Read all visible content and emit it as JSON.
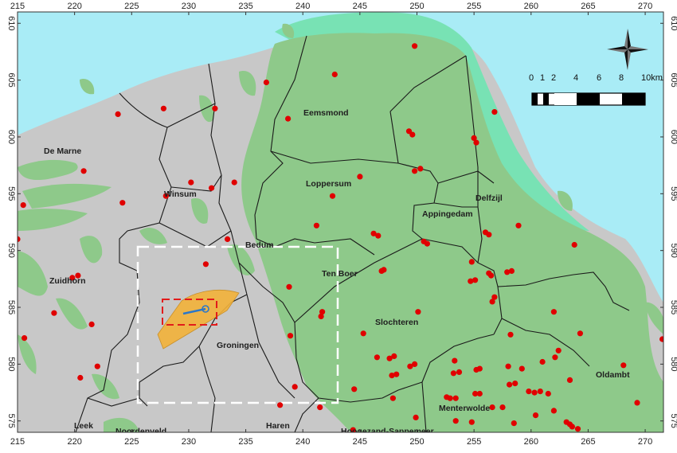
{
  "map": {
    "colors": {
      "sea": "#a9ecf6",
      "land": "#c8c8c8",
      "gas_field": "#8ec98a",
      "offshore_field": "#78e2b4",
      "earthquake": "#e00000",
      "study_area": "#f3b23a",
      "well": "#2b77c9",
      "boundary": "#1a1a1a"
    },
    "x_ticks": [
      "215",
      "220",
      "225",
      "230",
      "235",
      "240",
      "245",
      "250",
      "255",
      "260",
      "265",
      "270"
    ],
    "y_ticks": [
      "610",
      "605",
      "600",
      "595",
      "590",
      "585",
      "580",
      "575"
    ],
    "municipalities": [
      {
        "name": "Eemsmond"
      },
      {
        "name": "De Marne"
      },
      {
        "name": "Loppersum"
      },
      {
        "name": "Delfzijl"
      },
      {
        "name": "Winsum"
      },
      {
        "name": "Appingedam"
      },
      {
        "name": "Bedum"
      },
      {
        "name": "Ten Boer"
      },
      {
        "name": "Zuidhorn"
      },
      {
        "name": "Slochteren"
      },
      {
        "name": "Groningen"
      },
      {
        "name": "Oldambt"
      },
      {
        "name": "Menterwolde"
      },
      {
        "name": "Leek"
      },
      {
        "name": "Noordenveld"
      },
      {
        "name": "Haren"
      },
      {
        "name": "Hoogezand-Sappemeer"
      }
    ],
    "scale_bar": {
      "labels": [
        "0",
        "1",
        "2",
        "4",
        "6",
        "8",
        "10km"
      ]
    },
    "north_arrow": "compass-rose-icon",
    "earthquakes": [
      [
        249.8,
        608
      ],
      [
        242.8,
        605.5
      ],
      [
        236.8,
        604.8
      ],
      [
        238.7,
        601.6
      ],
      [
        223.8,
        602
      ],
      [
        227.8,
        602.5
      ],
      [
        232.3,
        602.5
      ],
      [
        249.3,
        600.5
      ],
      [
        249.6,
        600.2
      ],
      [
        255,
        599.9
      ],
      [
        255.2,
        599.5
      ],
      [
        256.8,
        602.2
      ],
      [
        220.8,
        597
      ],
      [
        230.2,
        596
      ],
      [
        232,
        595.5
      ],
      [
        228,
        594.8
      ],
      [
        234,
        596
      ],
      [
        242.6,
        594.8
      ],
      [
        245,
        596.5
      ],
      [
        249.8,
        597
      ],
      [
        250.3,
        597.2
      ],
      [
        224.2,
        594.2
      ],
      [
        215.5,
        594
      ],
      [
        215,
        591
      ],
      [
        219.8,
        587.6
      ],
      [
        220.3,
        587.8
      ],
      [
        218.2,
        584.5
      ],
      [
        221.5,
        583.5
      ],
      [
        215.6,
        582.3
      ],
      [
        222,
        579.8
      ],
      [
        220.5,
        578.8
      ],
      [
        233.4,
        591
      ],
      [
        231.5,
        588.8
      ],
      [
        241.2,
        592.2
      ],
      [
        246.2,
        591.5
      ],
      [
        246.6,
        591.3
      ],
      [
        250.6,
        590.8
      ],
      [
        250.9,
        590.6
      ],
      [
        254.8,
        589
      ],
      [
        256,
        591.6
      ],
      [
        256.3,
        591.4
      ],
      [
        258.9,
        592.2
      ],
      [
        263.8,
        590.5
      ],
      [
        254.7,
        587.3
      ],
      [
        255.1,
        587.4
      ],
      [
        256.3,
        588
      ],
      [
        256.5,
        587.8
      ],
      [
        257.9,
        588.1
      ],
      [
        258.3,
        588.2
      ],
      [
        246.9,
        588.2
      ],
      [
        247.1,
        588.3
      ],
      [
        238.8,
        586.8
      ],
      [
        241.6,
        584.2
      ],
      [
        241.7,
        584.6
      ],
      [
        245.3,
        582.7
      ],
      [
        250.1,
        584.6
      ],
      [
        256.6,
        585.5
      ],
      [
        256.8,
        585.9
      ],
      [
        262,
        584.6
      ],
      [
        264.3,
        582.7
      ],
      [
        238.9,
        582.5
      ],
      [
        246.5,
        580.6
      ],
      [
        247.6,
        580.5
      ],
      [
        248,
        580.7
      ],
      [
        249.8,
        580
      ],
      [
        249.4,
        579.8
      ],
      [
        253.3,
        580.3
      ],
      [
        247.8,
        579
      ],
      [
        248.2,
        579.1
      ],
      [
        253.2,
        579.2
      ],
      [
        253.7,
        579.3
      ],
      [
        255.2,
        579.5
      ],
      [
        255.5,
        579.6
      ],
      [
        258,
        579.8
      ],
      [
        259.2,
        579.6
      ],
      [
        261,
        580.2
      ],
      [
        262.1,
        580.6
      ],
      [
        262.4,
        581.2
      ],
      [
        258.2,
        582.6
      ],
      [
        244.5,
        577.8
      ],
      [
        239.3,
        578
      ],
      [
        247.9,
        577
      ],
      [
        252.6,
        577.1
      ],
      [
        252.9,
        577
      ],
      [
        253.4,
        577
      ],
      [
        255.1,
        577.4
      ],
      [
        255.5,
        577.4
      ],
      [
        258.1,
        578.2
      ],
      [
        258.6,
        578.3
      ],
      [
        259.8,
        577.6
      ],
      [
        260.3,
        577.5
      ],
      [
        260.8,
        577.6
      ],
      [
        261.5,
        577.4
      ],
      [
        263.4,
        578.6
      ],
      [
        260.4,
        575.5
      ],
      [
        262,
        575.9
      ],
      [
        257.5,
        576.2
      ],
      [
        249.9,
        575.3
      ],
      [
        254.8,
        574.9
      ],
      [
        253.4,
        575
      ],
      [
        258.5,
        574.8
      ],
      [
        263.1,
        574.9
      ],
      [
        263.4,
        574.7
      ],
      [
        263.6,
        574.5
      ],
      [
        264.1,
        574.3
      ],
      [
        256.6,
        576.2
      ],
      [
        268.1,
        579.9
      ],
      [
        269.3,
        576.6
      ],
      [
        271.5,
        582.2
      ],
      [
        238,
        576.4
      ],
      [
        241.5,
        576.2
      ],
      [
        244.4,
        574.2
      ]
    ]
  }
}
